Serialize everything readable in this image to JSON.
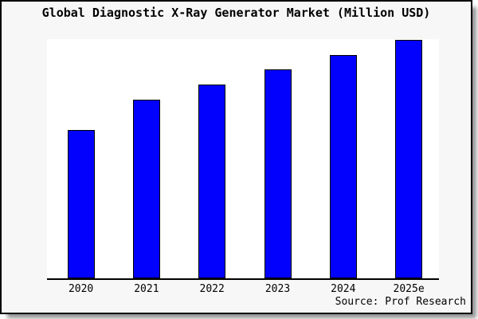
{
  "chart_data": {
    "type": "bar",
    "title": "Global Diagnostic X-Ray Generator Market (Million USD)",
    "categories": [
      "2020",
      "2021",
      "2022",
      "2023",
      "2024",
      "2025e"
    ],
    "values": [
      62.3,
      75.0,
      81.3,
      87.7,
      93.7,
      100
    ],
    "unit": "Million USD",
    "xlabel": "",
    "ylabel": "",
    "ylim": [
      0,
      100
    ],
    "y_axis_visible": false,
    "grid": false,
    "legend": false,
    "value_note": "No y-axis or data labels shown in image; values are relative bar heights scaled so 2025e = 100",
    "colors": {
      "bar_fill": "#0101fd",
      "bar_border": "#000000",
      "plot_background": "#ffffff",
      "chart_background": "#f7f7f7",
      "axis": "#000000",
      "text": "#000000"
    }
  },
  "source": {
    "label": "Source: Prof Research"
  }
}
